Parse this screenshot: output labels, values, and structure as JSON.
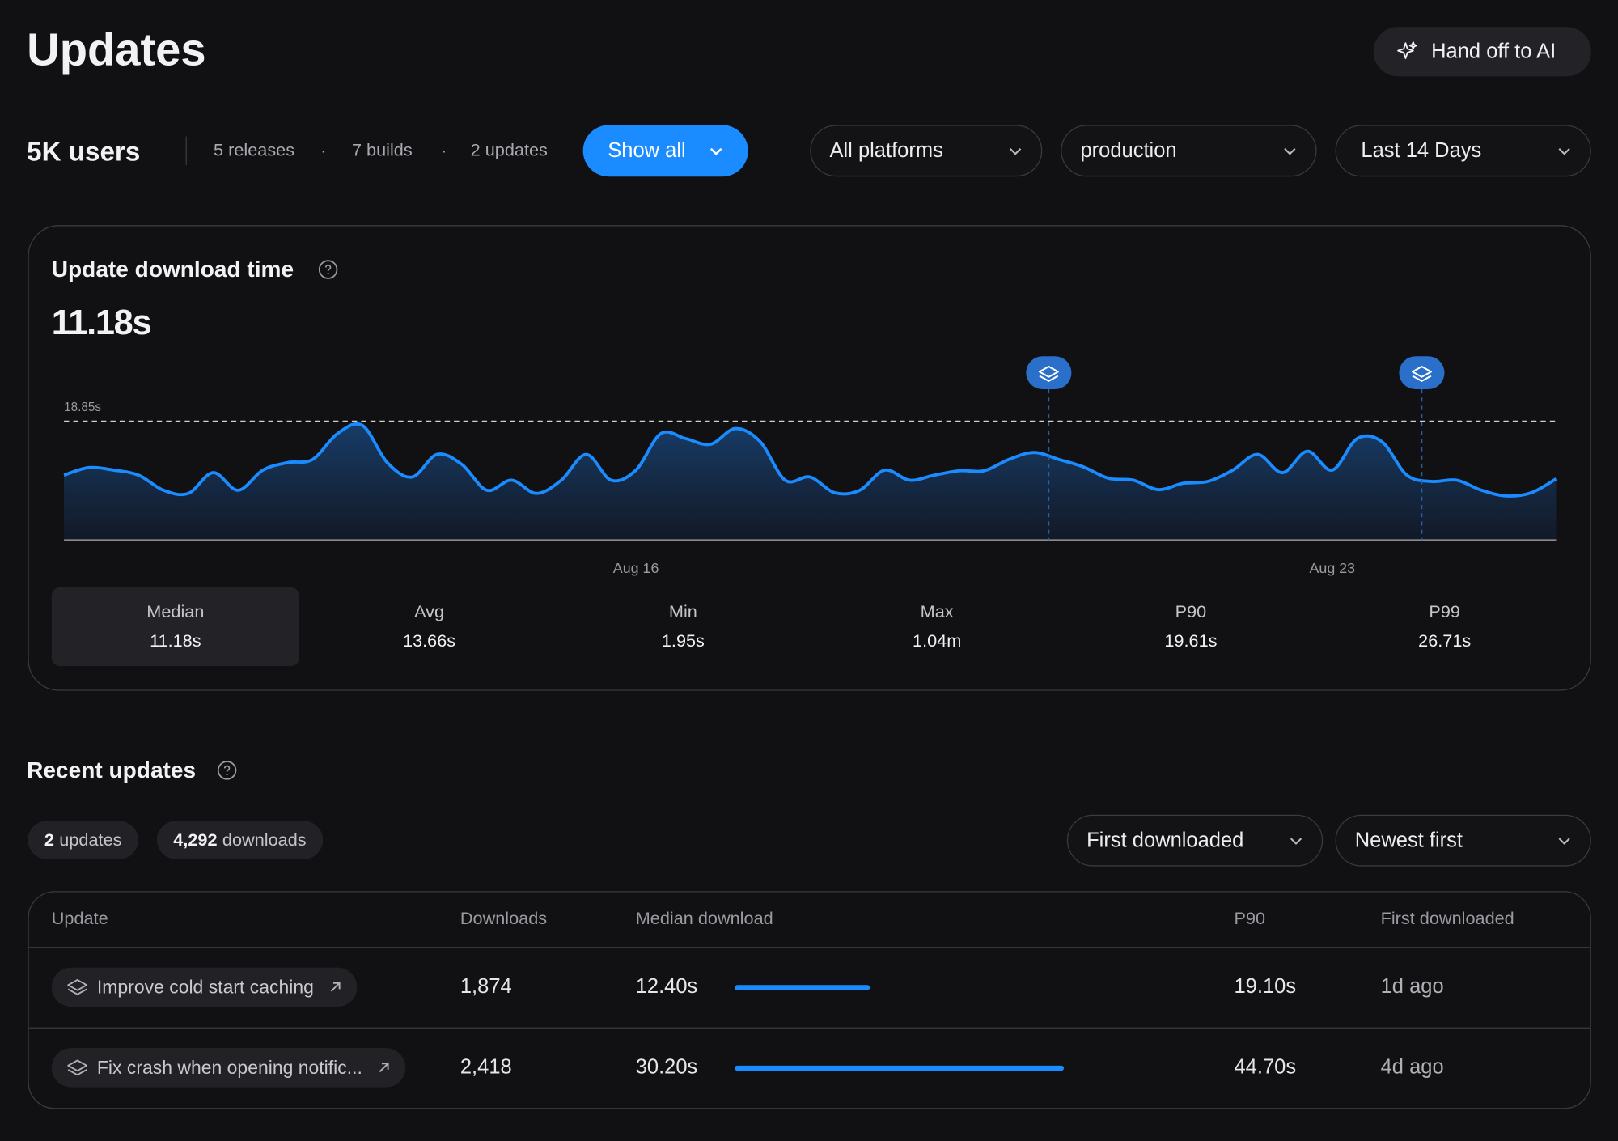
{
  "header": {
    "title": "Updates",
    "button": "Hand off to AI"
  },
  "summary": {
    "users": "5K users",
    "counts": [
      "5 releases",
      "7 builds",
      "2 updates"
    ],
    "separator": "·",
    "show_all": "Show all",
    "filters": [
      "All platforms",
      "production",
      "Last 14 Days"
    ]
  },
  "chart_data": {
    "type": "line",
    "title": "Update download time",
    "headline": "11.18s",
    "categories": [
      null,
      null,
      null,
      null,
      null,
      null,
      null,
      null,
      null,
      null,
      null,
      null,
      null,
      null,
      null,
      null,
      null,
      null,
      null,
      null,
      null,
      null,
      null,
      "Aug 16",
      null,
      null,
      null,
      null,
      null,
      null,
      null,
      null,
      null,
      null,
      null,
      null,
      null,
      null,
      null,
      null,
      null,
      null,
      null,
      null,
      null,
      null,
      null,
      null,
      null,
      null,
      null,
      "Aug 23",
      null,
      null,
      null,
      null,
      null,
      null,
      null,
      null,
      null
    ],
    "values": [
      10.3,
      11.5,
      11.1,
      10.3,
      7.9,
      7.4,
      10.7,
      7.9,
      11.1,
      12.3,
      12.8,
      16.9,
      18.2,
      12.3,
      10.0,
      13.6,
      12.0,
      7.9,
      9.5,
      7.4,
      9.5,
      13.6,
      9.5,
      11.1,
      16.9,
      16.1,
      15.2,
      17.7,
      15.6,
      9.5,
      10.0,
      7.5,
      7.9,
      11.1,
      9.5,
      10.3,
      11.0,
      11.0,
      12.8,
      13.9,
      12.8,
      11.6,
      9.8,
      9.5,
      8.0,
      9.0,
      9.3,
      11.1,
      13.6,
      10.7,
      14.1,
      11.1,
      16.1,
      15.6,
      10.3,
      9.3,
      9.5,
      7.9,
      7.0,
      7.5,
      9.7
    ],
    "color": "#1a8cff",
    "ylim": [
      0,
      25
    ],
    "reference": {
      "value": 18.85,
      "label": "18.85s"
    },
    "release_markers": [
      39.6,
      54.6
    ],
    "stats": [
      {
        "label": "Median",
        "value": "11.18s"
      },
      {
        "label": "Avg",
        "value": "13.66s"
      },
      {
        "label": "Min",
        "value": "1.95s"
      },
      {
        "label": "Max",
        "value": "1.04m"
      },
      {
        "label": "P90",
        "value": "19.61s"
      },
      {
        "label": "P99",
        "value": "26.71s"
      }
    ]
  },
  "recent": {
    "title": "Recent updates",
    "pills": [
      {
        "count": "2",
        "label": "updates"
      },
      {
        "count": "4,292",
        "label": "downloads"
      }
    ],
    "sorts": [
      "First downloaded",
      "Newest first"
    ]
  },
  "table": {
    "columns": [
      "Update",
      "Downloads",
      "Median download",
      "P90",
      "First downloaded"
    ],
    "rows": [
      {
        "update": "Improve cold start caching",
        "downloads": "1,874",
        "median": 12.4,
        "median_label": "12.40s",
        "p90": "19.10s",
        "first": "1d ago"
      },
      {
        "update": "Fix crash when opening notific...",
        "downloads": "2,418",
        "median": 30.2,
        "median_label": "30.20s",
        "p90": "44.70s",
        "first": "4d ago"
      }
    ]
  }
}
